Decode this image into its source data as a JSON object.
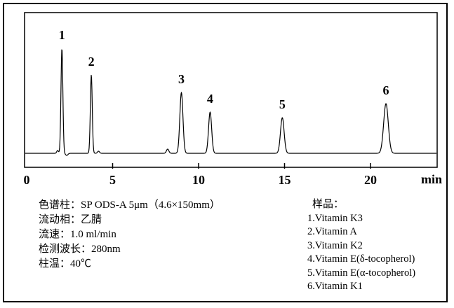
{
  "chart_data": {
    "type": "line",
    "xlabel": "min",
    "x_ticks": [
      0,
      5,
      10,
      15,
      20
    ],
    "x_range": [
      0,
      23.8
    ],
    "y_baseline": 0,
    "grid": false,
    "legend_position": "none",
    "peaks": [
      {
        "label": "1",
        "rt_min": 2.05,
        "height_rel": 150,
        "sigma_min": 0.055,
        "compound": "Vitamin K3"
      },
      {
        "label": "2",
        "rt_min": 3.76,
        "height_rel": 112,
        "sigma_min": 0.055,
        "compound": "Vitamin A"
      },
      {
        "label": "3",
        "rt_min": 9.0,
        "height_rel": 87,
        "sigma_min": 0.09,
        "compound": "Vitamin K2"
      },
      {
        "label": "4",
        "rt_min": 10.67,
        "height_rel": 59,
        "sigma_min": 0.09,
        "compound": "Vitamin E(δ-tocopherol)"
      },
      {
        "label": "5",
        "rt_min": 14.87,
        "height_rel": 51,
        "sigma_min": 0.105,
        "compound": "Vitamin E(α-tocopherol)"
      },
      {
        "label": "6",
        "rt_min": 20.9,
        "height_rel": 71,
        "sigma_min": 0.135,
        "compound": "Vitamin K1"
      }
    ],
    "minor_features": [
      {
        "rt_min": 1.8,
        "height_rel": 4,
        "sigma_min": 0.05
      },
      {
        "rt_min": 2.33,
        "height_rel": -3,
        "sigma_min": 0.07
      },
      {
        "rt_min": 4.18,
        "height_rel": 3,
        "sigma_min": 0.06
      },
      {
        "rt_min": 8.2,
        "height_rel": 6,
        "sigma_min": 0.07
      }
    ]
  },
  "conditions": {
    "lines": [
      "色谱柱：SP ODS-A 5μm（4.6×150mm）",
      "流动相：乙腈",
      "流速：1.0 ml/min",
      "检测波长：280nm",
      "柱温：40℃"
    ]
  },
  "sample": {
    "header": "样品：",
    "items": [
      "1.Vitamin K3",
      "2.Vitamin A",
      "3.Vitamin K2",
      "4.Vitamin E(δ-tocopherol)",
      "5.Vitamin E(α-tocopherol)",
      "6.Vitamin K1"
    ]
  },
  "colors": {
    "ink": "#000000",
    "background": "#ffffff"
  }
}
